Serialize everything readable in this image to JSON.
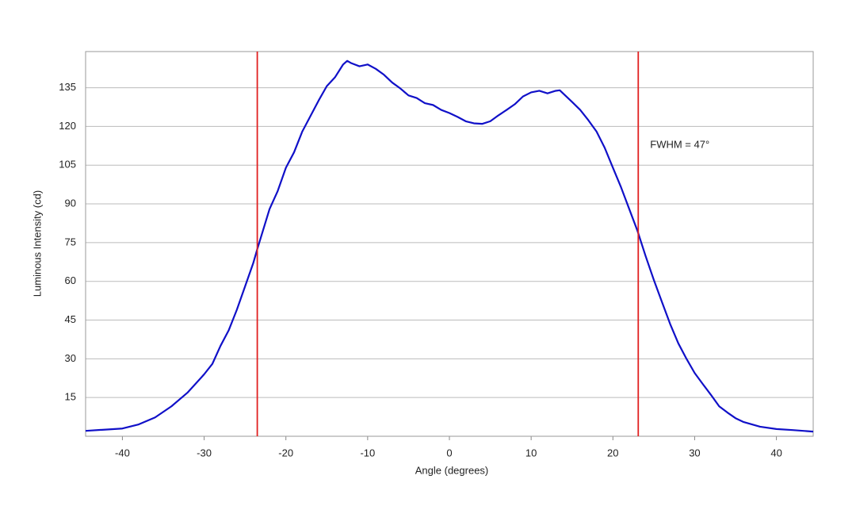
{
  "chart_data": {
    "type": "line",
    "xlabel": "Angle (degrees)",
    "ylabel": "Luminous Intensity (cd)",
    "annotation": "FWHM = 47°",
    "x": [
      -44.5,
      -40,
      -38,
      -36,
      -34,
      -32,
      -30,
      -29,
      -28,
      -27,
      -26,
      -25,
      -24,
      -23.5,
      -22,
      -21,
      -20,
      -19,
      -18,
      -17,
      -16,
      -15,
      -14,
      -13,
      -12.5,
      -12,
      -11,
      -10,
      -9,
      -8,
      -7,
      -6,
      -5,
      -4,
      -3,
      -2,
      -1,
      0,
      1,
      2,
      3,
      4,
      5,
      6,
      7,
      8,
      9,
      10,
      11,
      12,
      13,
      13.5,
      14,
      15,
      16,
      17,
      18,
      19,
      20,
      21,
      22,
      23,
      24,
      25,
      26,
      27,
      28,
      29,
      30,
      31,
      32,
      33,
      34,
      35,
      36,
      38,
      40,
      42,
      44.5
    ],
    "series": [
      {
        "color": "#1010c8",
        "values": [
          2.1,
          3,
          4.6,
          7.3,
          11.6,
          17,
          24,
          28,
          35,
          41,
          49,
          58,
          67,
          72.5,
          88,
          95,
          104,
          110,
          118,
          124,
          130,
          135.6,
          139,
          144,
          145.4,
          144.5,
          143.3,
          144,
          142.3,
          140,
          137,
          134.7,
          132,
          131,
          129,
          128.3,
          126.4,
          125.2,
          123.7,
          122,
          121.2,
          121,
          122,
          124.3,
          126.4,
          128.6,
          131.6,
          133.2,
          133.8,
          132.8,
          133.8,
          134,
          132.5,
          129.5,
          126.4,
          122.4,
          118,
          111.7,
          104,
          96.4,
          88,
          79.6,
          69.8,
          60.6,
          52,
          43.5,
          36,
          30,
          24.5,
          20.2,
          16,
          11.6,
          9.2,
          7,
          5.5,
          3.7,
          2.8,
          2.4,
          1.8
        ]
      }
    ],
    "vlines": [
      -23.5,
      23.1
    ],
    "vline_color": "#e02020",
    "xlim": [
      -44.5,
      44.5
    ],
    "ylim": [
      0,
      149
    ],
    "xticks": [
      -40,
      -30,
      -20,
      -10,
      0,
      10,
      20,
      30,
      40
    ],
    "yticks": [
      15,
      30,
      45,
      60,
      75,
      90,
      105,
      120,
      135
    ],
    "grid": true
  }
}
